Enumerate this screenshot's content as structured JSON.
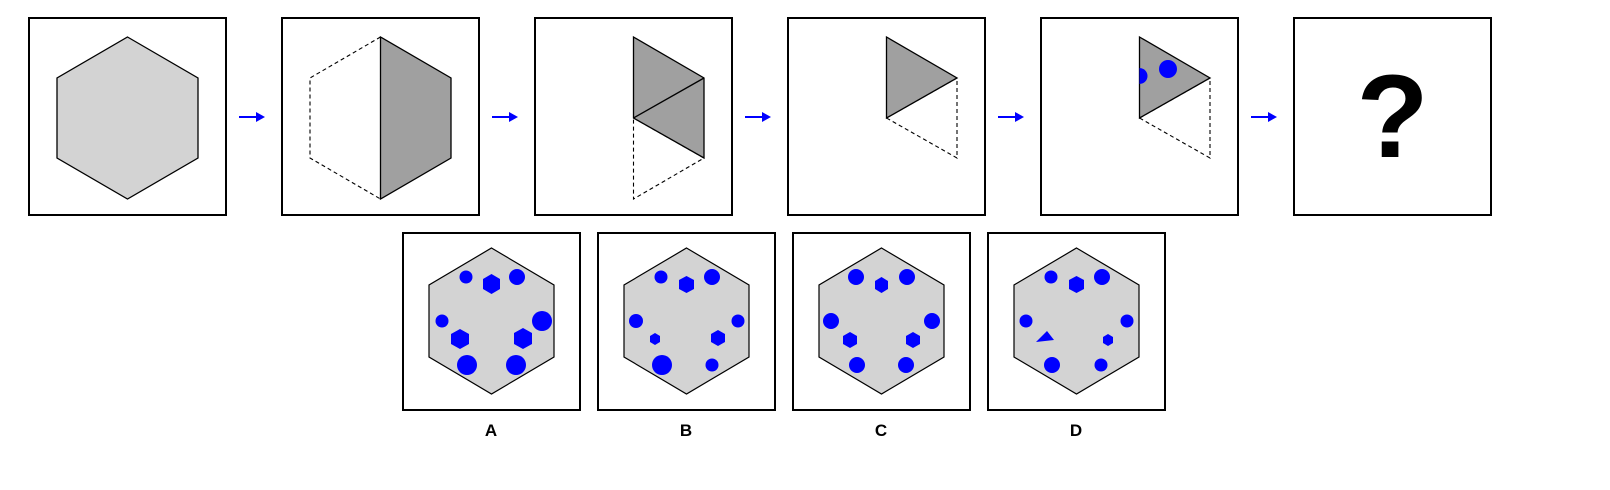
{
  "colors": {
    "hex_fill": "#d3d3d3",
    "half_fill": "#a0a0a0",
    "dot": "#0000ff",
    "arrow": "#0000ff",
    "stroke": "#000000"
  },
  "sequence": {
    "step_icons": [
      "hexagon",
      "half-hexagon-folded",
      "triangles-folded",
      "triangle-folded",
      "triangle-with-holes"
    ],
    "arrow_icon": "right-arrow",
    "unknown_mark": "?"
  },
  "options": [
    {
      "label": "A"
    },
    {
      "label": "B"
    },
    {
      "label": "C"
    },
    {
      "label": "D"
    }
  ]
}
